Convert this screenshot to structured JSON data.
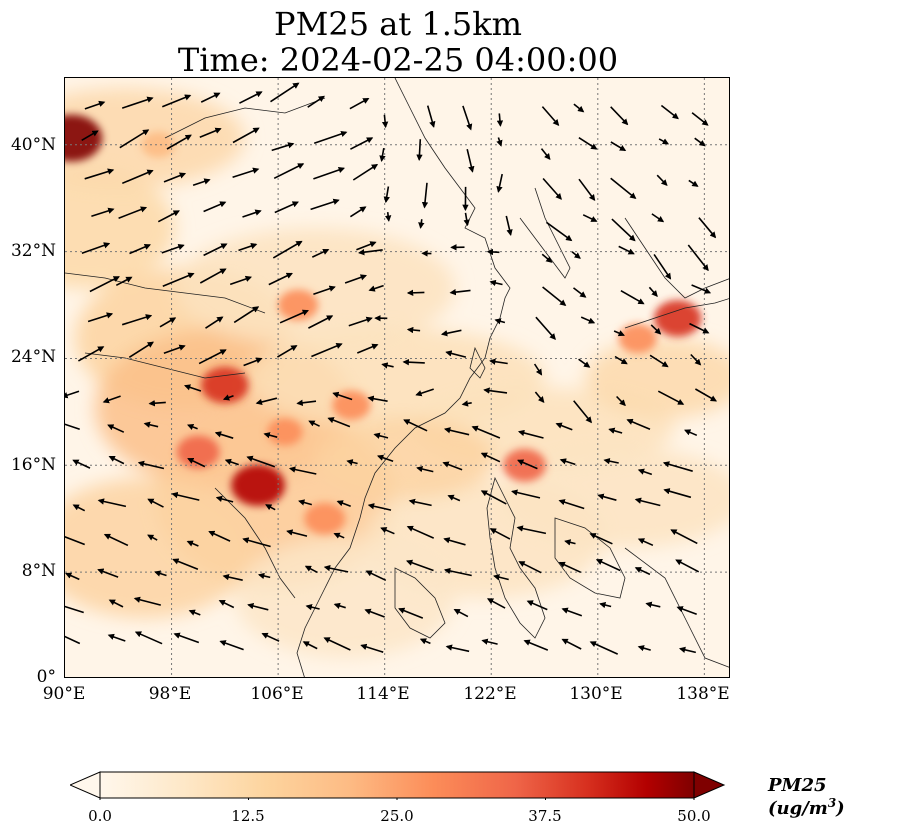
{
  "title_line_1": "PM25 at 1.5km",
  "title_line_2": "Time: 2024-02-25 04:00:00",
  "map": {
    "variable": "PM25",
    "level": "1.5km",
    "time": "2024-02-25 04:00:00",
    "lon_range": [
      90,
      140
    ],
    "lat_range": [
      0,
      45
    ],
    "lon_ticks": [
      "90°E",
      "98°E",
      "106°E",
      "114°E",
      "122°E",
      "130°E",
      "138°E"
    ],
    "lat_ticks": [
      "0°",
      "8°N",
      "16°N",
      "24°N",
      "32°N",
      "40°N"
    ],
    "gridlines": "dotted",
    "overlay": "wind vectors",
    "colormap": "OrRd"
  },
  "colorbar": {
    "label_main": "PM25 (ug/m",
    "label_exp": "3",
    "label_close": ")",
    "ticks": [
      "0.0",
      "12.5",
      "25.0",
      "37.5",
      "50.0"
    ],
    "range": [
      0,
      50
    ],
    "extend": "both",
    "colors": [
      "#fff7ec",
      "#fee8c8",
      "#fdd49e",
      "#fdbb84",
      "#fc8d59",
      "#ef6548",
      "#d7301f",
      "#b30000",
      "#7f0000"
    ]
  },
  "hotspots": [
    {
      "lon": 90.5,
      "lat": 40.5,
      "value": 50
    },
    {
      "lon": 104.5,
      "lat": 14.5,
      "value": 42
    },
    {
      "lon": 102.0,
      "lat": 22.0,
      "value": 35
    },
    {
      "lon": 100.0,
      "lat": 17.0,
      "value": 30
    },
    {
      "lon": 107.5,
      "lat": 28.0,
      "value": 27
    },
    {
      "lon": 136.0,
      "lat": 27.0,
      "value": 35
    },
    {
      "lon": 133.0,
      "lat": 25.5,
      "value": 25
    },
    {
      "lon": 124.5,
      "lat": 16.0,
      "value": 30
    },
    {
      "lon": 109.5,
      "lat": 12.0,
      "value": 28
    },
    {
      "lon": 111.5,
      "lat": 20.5,
      "value": 25
    },
    {
      "lon": 97.0,
      "lat": 40.0,
      "value": 20
    },
    {
      "lon": 106.5,
      "lat": 18.5,
      "value": 22
    }
  ]
}
